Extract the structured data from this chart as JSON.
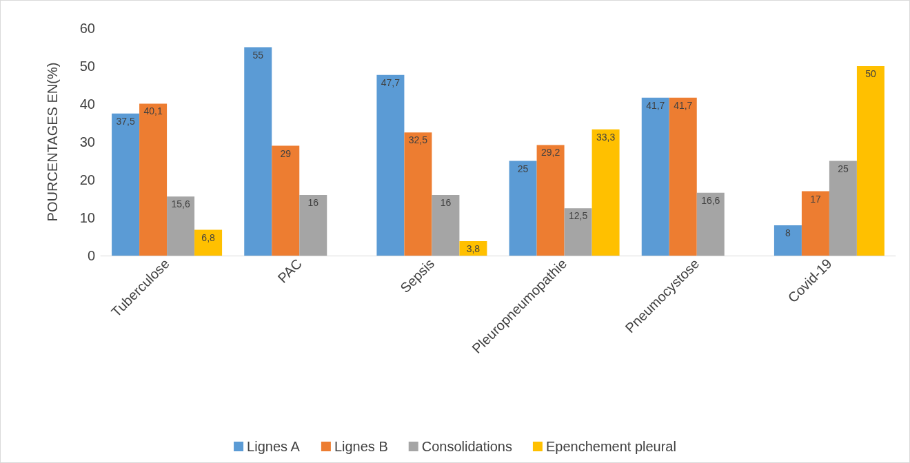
{
  "chart_data": {
    "type": "bar",
    "ylabel": "POURCENTAGES EN(%)",
    "categories": [
      "Tuberculose",
      "PAC",
      "Sepsis",
      "Pleuropneumopathie",
      "Pneumocystose",
      "Covid-19"
    ],
    "series": [
      {
        "name": "Lignes A",
        "color": "#5b9bd5",
        "values": [
          37.5,
          55,
          47.7,
          25,
          41.7,
          8
        ],
        "value_labels": [
          "37,5",
          "55",
          "47,7",
          "25",
          "41,7",
          "8"
        ]
      },
      {
        "name": "Lignes B",
        "color": "#ed7d31",
        "values": [
          40.1,
          29,
          32.5,
          29.2,
          41.7,
          17
        ],
        "value_labels": [
          "40,1",
          "29",
          "32,5",
          "29,2",
          "41,7",
          "17"
        ]
      },
      {
        "name": "Consolidations",
        "color": "#a5a5a5",
        "values": [
          15.6,
          16,
          16,
          12.5,
          16.6,
          25
        ],
        "value_labels": [
          "15,6",
          "16",
          "16",
          "12,5",
          "16,6",
          "25"
        ]
      },
      {
        "name": "Epenchement pleural",
        "color": "#ffc000",
        "values": [
          6.8,
          null,
          3.8,
          33.3,
          null,
          50
        ],
        "value_labels": [
          "6,8",
          null,
          "3,8",
          "33,3",
          null,
          "50"
        ]
      }
    ],
    "ylim": [
      0,
      60
    ],
    "yticks": [
      0,
      10,
      20,
      30,
      40,
      50,
      60
    ],
    "grid": false,
    "legend": "bottom"
  }
}
